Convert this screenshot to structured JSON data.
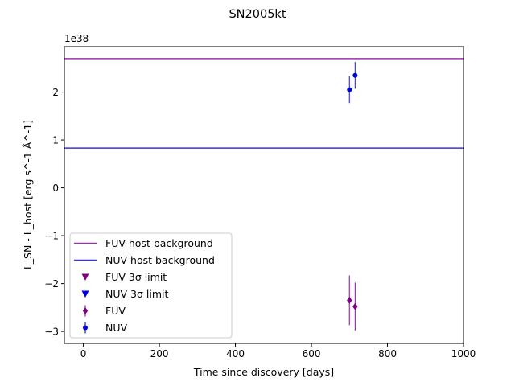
{
  "chart_data": {
    "type": "scatter",
    "title": "SN2005kt",
    "xlabel": "Time since discovery [days]",
    "ylabel": "L_SN - L_host [erg s^-1 Å^-1]",
    "offset_text": "1e38",
    "xlim": [
      -50,
      1000
    ],
    "ylim": [
      -3.25,
      2.95
    ],
    "x_ticks": [
      0,
      200,
      400,
      600,
      800,
      1000
    ],
    "y_ticks": [
      -3,
      -2,
      -1,
      0,
      1,
      2
    ],
    "y_tick_labels": [
      "−3",
      "−2",
      "−1",
      "0",
      "1",
      "2"
    ],
    "grid": false,
    "legend_position": "lower-left",
    "hlines": [
      {
        "name": "FUV host background",
        "y": 2.7,
        "color": "#9933aa"
      },
      {
        "name": "NUV host background",
        "y": 0.83,
        "color": "#3333ee"
      }
    ],
    "limits": [
      {
        "name": "FUV 3σ limit",
        "color": "#800080",
        "points": []
      },
      {
        "name": "NUV 3σ limit",
        "color": "#0000dd",
        "points": []
      }
    ],
    "series": [
      {
        "name": "FUV",
        "marker": "diamond",
        "color": "#800080",
        "errcolor": "#9b30c0",
        "points": [
          {
            "x": 700,
            "y": -2.35,
            "err": 0.52
          },
          {
            "x": 715,
            "y": -2.48,
            "err": 0.5
          }
        ]
      },
      {
        "name": "NUV",
        "marker": "circle",
        "color": "#0000dd",
        "errcolor": "#3a3aff",
        "points": [
          {
            "x": 700,
            "y": 2.05,
            "err": 0.28
          },
          {
            "x": 715,
            "y": 2.35,
            "err": 0.28
          }
        ]
      }
    ],
    "legend": [
      {
        "label": "FUV host background",
        "kind": "line",
        "color": "#9933aa"
      },
      {
        "label": "NUV host background",
        "kind": "line",
        "color": "#3333ee"
      },
      {
        "label": "FUV 3σ limit",
        "kind": "triangle",
        "color": "#800080"
      },
      {
        "label": "NUV 3σ limit",
        "kind": "triangle",
        "color": "#0000dd"
      },
      {
        "label": "FUV",
        "kind": "diamond",
        "color": "#800080"
      },
      {
        "label": "NUV",
        "kind": "circle",
        "color": "#0000dd"
      }
    ]
  }
}
